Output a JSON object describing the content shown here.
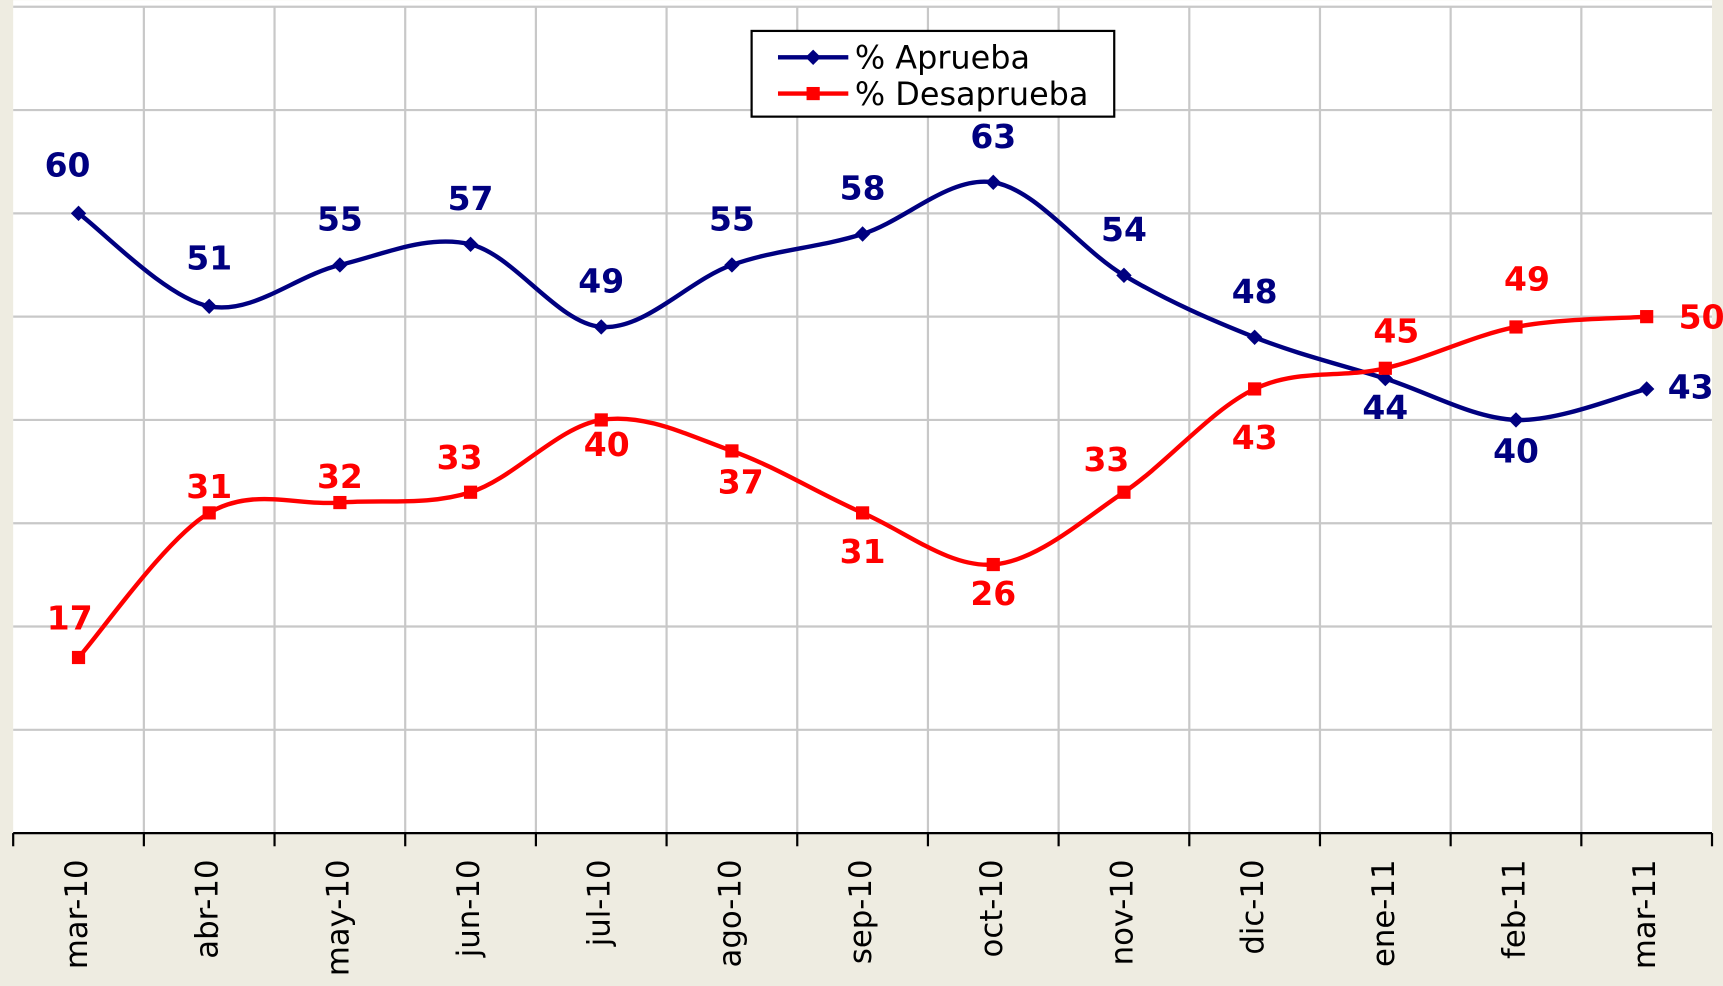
{
  "chart_data": {
    "type": "line",
    "categories": [
      "mar-10",
      "abr-10",
      "may-10",
      "jun-10",
      "jul-10",
      "ago-10",
      "sep-10",
      "oct-10",
      "nov-10",
      "dic-10",
      "ene-11",
      "feb-11",
      "mar-11"
    ],
    "series": [
      {
        "name": "% Aprueba",
        "color": "#000080",
        "marker": "diamond",
        "values": [
          60,
          51,
          55,
          57,
          49,
          55,
          58,
          63,
          54,
          48,
          44,
          40,
          43
        ]
      },
      {
        "name": "% Desaprueba",
        "color": "#ff0000",
        "marker": "square",
        "values": [
          17,
          31,
          32,
          33,
          40,
          37,
          31,
          26,
          33,
          43,
          45,
          49,
          50
        ]
      }
    ],
    "ylim": [
      0,
      80
    ],
    "yticks": [
      0,
      10,
      20,
      30,
      40,
      50,
      60,
      70,
      80
    ],
    "grid": true,
    "legend": "top"
  }
}
